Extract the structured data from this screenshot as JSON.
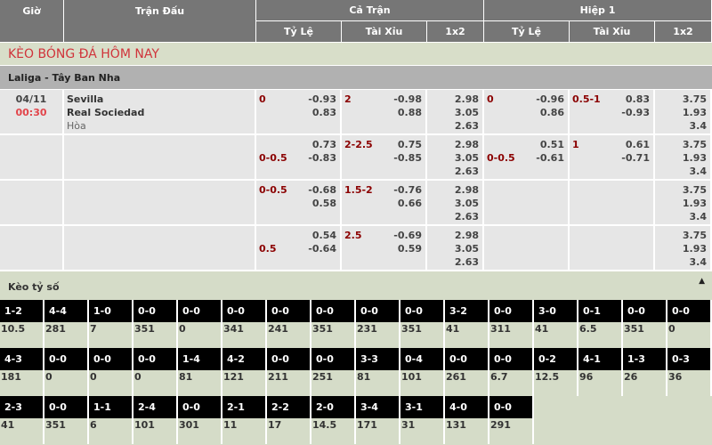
{
  "header": {
    "time": "Giờ",
    "match": "Trận Đấu",
    "full_match": "Cả Trận",
    "first_half": "Hiệp 1",
    "sub": [
      "Tỷ Lệ",
      "Tài Xỉu",
      "1x2",
      "Tỷ Lệ",
      "Tài Xỉu",
      "1x2"
    ]
  },
  "section_title": "KÈO BÓNG ĐÁ HÔM NAY",
  "league": "Laliga - Tây Ban Nha",
  "match": {
    "date": "04/11",
    "time": "00:30",
    "home": "Sevilla",
    "away": "Real Sociedad",
    "draw": "Hòa"
  },
  "colors": {
    "header_bg": "#767676",
    "title_text": "#d0343b",
    "handicap_text": "#8b0000",
    "kickoff_time": "#e2444a",
    "score_header_bg": "#000000",
    "section_bg": "#d8dec9"
  },
  "odds_rows": [
    {
      "ft_hdp": [
        {
          "l": "0",
          "v": "-0.93"
        },
        {
          "l": "",
          "v": "0.83"
        }
      ],
      "ft_ou": [
        {
          "l": "2",
          "v": "-0.98"
        },
        {
          "l": "",
          "v": "0.88"
        }
      ],
      "ft_1x2": [
        "2.98",
        "3.05",
        "2.63"
      ],
      "h1_hdp": [
        {
          "l": "0",
          "v": "-0.96"
        },
        {
          "l": "",
          "v": "0.86"
        }
      ],
      "h1_ou": [
        {
          "l": "0.5-1",
          "v": "0.83"
        },
        {
          "l": "",
          "v": "-0.93"
        }
      ],
      "h1_1x2": [
        "3.75",
        "1.93",
        "3.4"
      ]
    },
    {
      "ft_hdp": [
        {
          "l": "",
          "v": "0.73"
        },
        {
          "l": "0-0.5",
          "v": "-0.83"
        }
      ],
      "ft_ou": [
        {
          "l": "2-2.5",
          "v": "0.75"
        },
        {
          "l": "",
          "v": "-0.85"
        }
      ],
      "ft_1x2": [
        "2.98",
        "3.05",
        "2.63"
      ],
      "h1_hdp": [
        {
          "l": "",
          "v": "0.51"
        },
        {
          "l": "0-0.5",
          "v": "-0.61"
        }
      ],
      "h1_ou": [
        {
          "l": "1",
          "v": "0.61"
        },
        {
          "l": "",
          "v": "-0.71"
        }
      ],
      "h1_1x2": [
        "3.75",
        "1.93",
        "3.4"
      ]
    },
    {
      "ft_hdp": [
        {
          "l": "0-0.5",
          "v": "-0.68"
        },
        {
          "l": "",
          "v": "0.58"
        }
      ],
      "ft_ou": [
        {
          "l": "1.5-2",
          "v": "-0.76"
        },
        {
          "l": "",
          "v": "0.66"
        }
      ],
      "ft_1x2": [
        "2.98",
        "3.05",
        "2.63"
      ],
      "h1_hdp": [],
      "h1_ou": [],
      "h1_1x2": [
        "3.75",
        "1.93",
        "3.4"
      ]
    },
    {
      "ft_hdp": [
        {
          "l": "",
          "v": "0.54"
        },
        {
          "l": "0.5",
          "v": "-0.64"
        }
      ],
      "ft_ou": [
        {
          "l": "2.5",
          "v": "-0.69"
        },
        {
          "l": "",
          "v": "0.59"
        }
      ],
      "ft_1x2": [
        "2.98",
        "3.05",
        "2.63"
      ],
      "h1_hdp": [],
      "h1_ou": [],
      "h1_1x2": [
        "3.75",
        "1.93",
        "3.4"
      ]
    }
  ],
  "score_section": {
    "title": "Kèo tỷ số",
    "collapse_icon": "triangle-up-icon",
    "collapse_glyph": "▲",
    "scores": [
      {
        "s": "1-2",
        "o": "10.5"
      },
      {
        "s": "4-4",
        "o": "281"
      },
      {
        "s": "1-0",
        "o": "7"
      },
      {
        "s": "0-0",
        "o": "351"
      },
      {
        "s": "0-0",
        "o": "0"
      },
      {
        "s": "0-0",
        "o": "341"
      },
      {
        "s": "0-0",
        "o": "241"
      },
      {
        "s": "0-0",
        "o": "351"
      },
      {
        "s": "0-0",
        "o": "231"
      },
      {
        "s": "0-0",
        "o": "351"
      },
      {
        "s": "3-2",
        "o": "41"
      },
      {
        "s": "0-0",
        "o": "311"
      },
      {
        "s": "3-0",
        "o": "41"
      },
      {
        "s": "0-1",
        "o": "6.5"
      },
      {
        "s": "0-0",
        "o": "351"
      },
      {
        "s": "0-0",
        "o": "0"
      },
      {
        "s": "4-3",
        "o": "181"
      },
      {
        "s": "0-0",
        "o": "0"
      },
      {
        "s": "0-0",
        "o": "0"
      },
      {
        "s": "0-0",
        "o": "0"
      },
      {
        "s": "1-4",
        "o": "81"
      },
      {
        "s": "4-2",
        "o": "121"
      },
      {
        "s": "0-0",
        "o": "211"
      },
      {
        "s": "0-0",
        "o": "251"
      },
      {
        "s": "3-3",
        "o": "81"
      },
      {
        "s": "0-4",
        "o": "101"
      },
      {
        "s": "0-0",
        "o": "261"
      },
      {
        "s": "0-0",
        "o": "6.7"
      },
      {
        "s": "0-2",
        "o": "12.5"
      },
      {
        "s": "4-1",
        "o": "96"
      },
      {
        "s": "1-3",
        "o": "26"
      },
      {
        "s": "0-3",
        "o": "36"
      },
      {
        "s": "2-3",
        "o": "41"
      },
      {
        "s": "0-0",
        "o": "351"
      },
      {
        "s": "1-1",
        "o": "6"
      },
      {
        "s": "2-4",
        "o": "101"
      },
      {
        "s": "0-0",
        "o": "301"
      },
      {
        "s": "2-1",
        "o": "11"
      },
      {
        "s": "2-2",
        "o": "17"
      },
      {
        "s": "2-0",
        "o": "14.5"
      },
      {
        "s": "3-4",
        "o": "171"
      },
      {
        "s": "3-1",
        "o": "31"
      },
      {
        "s": "4-0",
        "o": "131"
      },
      {
        "s": "0-0",
        "o": "291"
      }
    ]
  }
}
